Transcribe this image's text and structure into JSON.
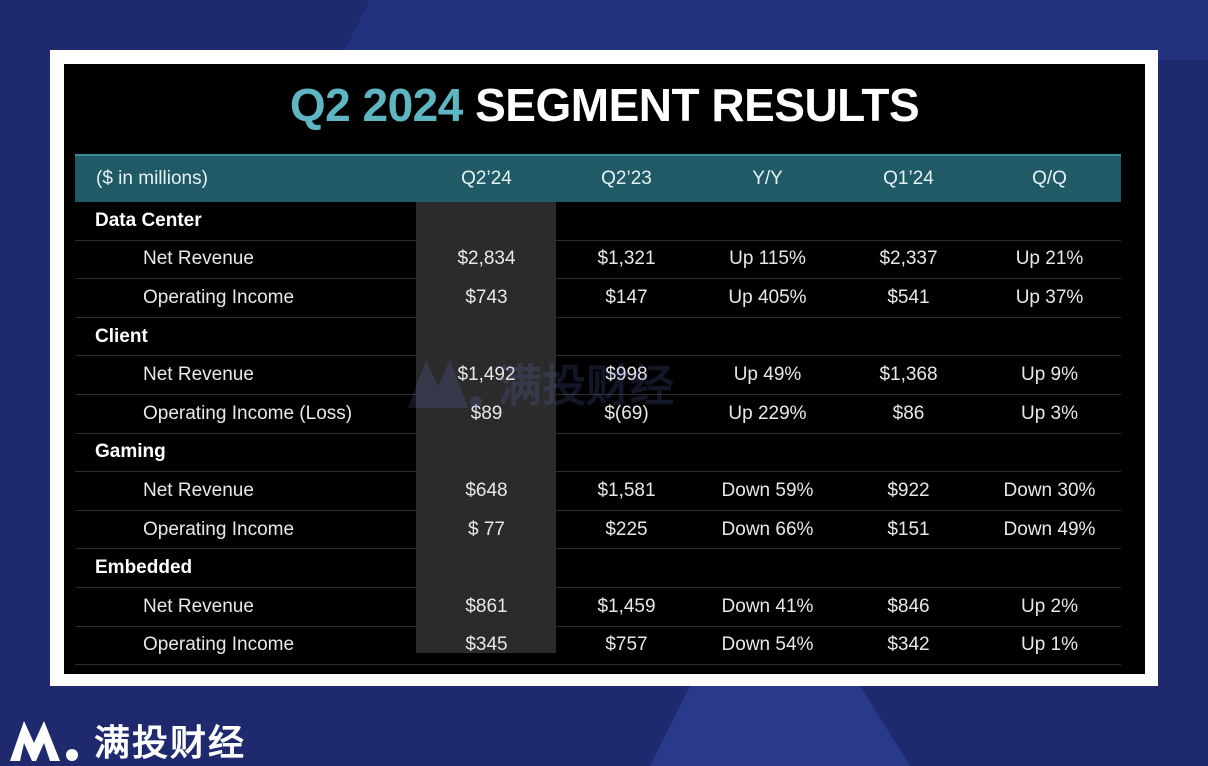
{
  "title": {
    "accent": "Q2 2024",
    "main": "SEGMENT RESULTS"
  },
  "columns": [
    "($ in millions)",
    "Q2’24",
    "Q2’23",
    "Y/Y",
    "Q1’24",
    "Q/Q"
  ],
  "segments": [
    {
      "name": "Data Center",
      "rows": [
        {
          "label": "Net Revenue",
          "values": [
            "$2,834",
            "$1,321",
            "Up 115%",
            "$2,337",
            "Up 21%"
          ]
        },
        {
          "label": "Operating Income",
          "values": [
            "$743",
            "$147",
            "Up 405%",
            "$541",
            "Up 37%"
          ]
        }
      ]
    },
    {
      "name": "Client",
      "rows": [
        {
          "label": "Net Revenue",
          "values": [
            "$1,492",
            "$998",
            "Up 49%",
            "$1,368",
            "Up 9%"
          ]
        },
        {
          "label": "Operating Income (Loss)",
          "values": [
            "$89",
            "$(69)",
            "Up 229%",
            "$86",
            "Up 3%"
          ]
        }
      ]
    },
    {
      "name": "Gaming",
      "rows": [
        {
          "label": "Net Revenue",
          "values": [
            "$648",
            "$1,581",
            "Down 59%",
            "$922",
            "Down 30%"
          ]
        },
        {
          "label": "Operating Income",
          "values": [
            "$ 77",
            "$225",
            "Down 66%",
            "$151",
            "Down 49%"
          ]
        }
      ]
    },
    {
      "name": "Embedded",
      "rows": [
        {
          "label": "Net Revenue",
          "values": [
            "$861",
            "$1,459",
            "Down 41%",
            "$846",
            "Up 2%"
          ]
        },
        {
          "label": "Operating Income",
          "values": [
            "$345",
            "$757",
            "Down 54%",
            "$342",
            "Up 1%"
          ]
        }
      ]
    }
  ],
  "watermark_text": "满投财经",
  "footer": {
    "brand": "满投财经",
    "logo_icon": "mantou-logo-icon"
  }
}
